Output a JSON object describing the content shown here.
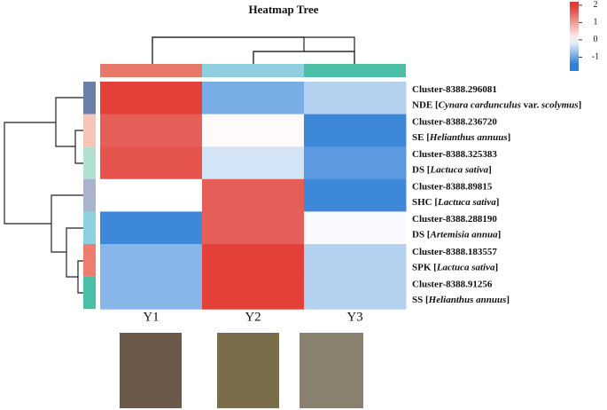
{
  "chart_data": {
    "type": "heatmap",
    "title": "Heatmap Tree",
    "columns": [
      "Y1",
      "Y2",
      "Y3"
    ],
    "column_colors": [
      "#e8786a",
      "#8ecfe0",
      "#4bbfa5"
    ],
    "rows": [
      {
        "cluster": "Cluster-8388.296081",
        "desc": [
          {
            "text": "NDE [",
            "italic": false
          },
          {
            "text": "Cynara cardunculus",
            "italic": true
          },
          {
            "text": " var. ",
            "italic": false
          },
          {
            "text": "scolymus",
            "italic": true
          },
          {
            "text": "]",
            "italic": false
          }
        ]
      },
      {
        "cluster": "Cluster-8388.236720",
        "desc": [
          {
            "text": "SE [",
            "italic": false
          },
          {
            "text": "Helianthus annuus",
            "italic": true
          },
          {
            "text": "]",
            "italic": false
          }
        ]
      },
      {
        "cluster": "Cluster-8388.325383",
        "desc": [
          {
            "text": "DS  [",
            "italic": false
          },
          {
            "text": "Lactuca sativa",
            "italic": true
          },
          {
            "text": "]",
            "italic": false
          }
        ]
      },
      {
        "cluster": "Cluster-8388.89815",
        "desc": [
          {
            "text": "SHC [",
            "italic": false
          },
          {
            "text": "Lactuca sativa",
            "italic": true
          },
          {
            "text": "]",
            "italic": false
          }
        ]
      },
      {
        "cluster": "Cluster-8388.288190",
        "desc": [
          {
            "text": "DS  [",
            "italic": false
          },
          {
            "text": "Artemisia annua",
            "italic": true
          },
          {
            "text": "]",
            "italic": false
          }
        ]
      },
      {
        "cluster": "Cluster-8388.183557",
        "desc": [
          {
            "text": "SPK  [",
            "italic": false
          },
          {
            "text": "Lactuca sativa",
            "italic": true
          },
          {
            "text": "]",
            "italic": false
          }
        ]
      },
      {
        "cluster": "Cluster-8388.91256",
        "desc": [
          {
            "text": "SS  [",
            "italic": false
          },
          {
            "text": "Helianthus annuus",
            "italic": true
          },
          {
            "text": "]",
            "italic": false
          }
        ]
      }
    ],
    "row_colors": [
      "#6b7fa8",
      "#f7c4b8",
      "#b2e0d0",
      "#a9b4cc",
      "#8dd0e0",
      "#ee7d70",
      "#4bbfa5"
    ],
    "values": [
      [
        1.9,
        -0.9,
        -0.5
      ],
      [
        1.6,
        0.05,
        -1.3
      ],
      [
        1.7,
        -0.3,
        -1.1
      ],
      [
        0,
        1.6,
        -1.3
      ],
      [
        -1.3,
        1.6,
        -0.05
      ],
      [
        -0.8,
        1.9,
        -0.5
      ],
      [
        -0.8,
        1.9,
        -0.5
      ]
    ],
    "zlim": [
      -1.8,
      2.2
    ],
    "zticks": [
      -1,
      0,
      1,
      2
    ],
    "low_color": "#2f7fd6",
    "mid_color": "#ffffff",
    "high_color": "#e0362e"
  }
}
